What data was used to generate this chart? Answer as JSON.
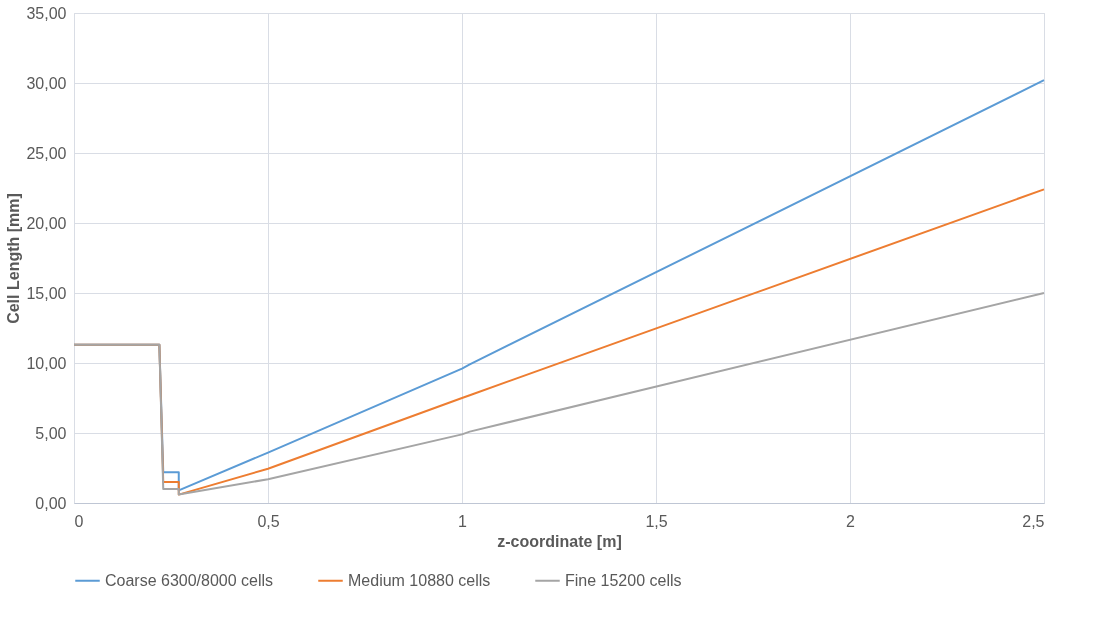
{
  "chart_data": {
    "type": "line",
    "xlabel": "z-coordinate [m]",
    "ylabel": "Cell Length [mm]",
    "xlim": [
      0,
      2.5
    ],
    "xticks": [
      0,
      {
        "value": 0.5,
        "label": "0,5"
      },
      1,
      {
        "value": 1.5,
        "label": "1,5"
      },
      2,
      {
        "value": 2.5,
        "label": "2,5"
      }
    ],
    "ylim": [
      0,
      35
    ],
    "yticks": [
      {
        "value": 0,
        "label": "0,00"
      },
      {
        "value": 5,
        "label": "5,00"
      },
      {
        "value": 10,
        "label": "10,00"
      },
      {
        "value": 15,
        "label": "15,00"
      },
      {
        "value": 20,
        "label": "20,00"
      },
      {
        "value": 25,
        "label": "25,00"
      },
      {
        "value": 30,
        "label": "30,00"
      },
      {
        "value": 35,
        "label": "35,00"
      }
    ],
    "grid": true,
    "legend": "bottom",
    "marker": "none",
    "line_style": "solid",
    "series": [
      {
        "name": "Coarse 6300/8000 cells",
        "color": "#5b9bd5",
        "x": [
          0,
          0.22,
          0.23,
          0.27,
          0.27,
          0.5,
          1.0,
          1.02,
          2.5
        ],
        "values": [
          11.3,
          11.3,
          2.2,
          2.2,
          0.9,
          3.6,
          9.6,
          9.9,
          30.2
        ]
      },
      {
        "name": "Medium 10880 cells",
        "color": "#ed7d31",
        "x": [
          0,
          0.22,
          0.23,
          0.27,
          0.27,
          0.5,
          1.0,
          1.02,
          2.5
        ],
        "values": [
          11.3,
          11.3,
          1.5,
          1.5,
          0.6,
          2.45,
          7.5,
          7.7,
          22.4
        ]
      },
      {
        "name": "Fine 15200 cells",
        "color": "#a5a5a5",
        "x": [
          0,
          0.22,
          0.23,
          0.27,
          0.27,
          0.5,
          1.0,
          1.02,
          2.5
        ],
        "values": [
          11.3,
          11.3,
          1.0,
          1.0,
          0.6,
          1.7,
          4.9,
          5.1,
          15.0
        ]
      }
    ]
  }
}
